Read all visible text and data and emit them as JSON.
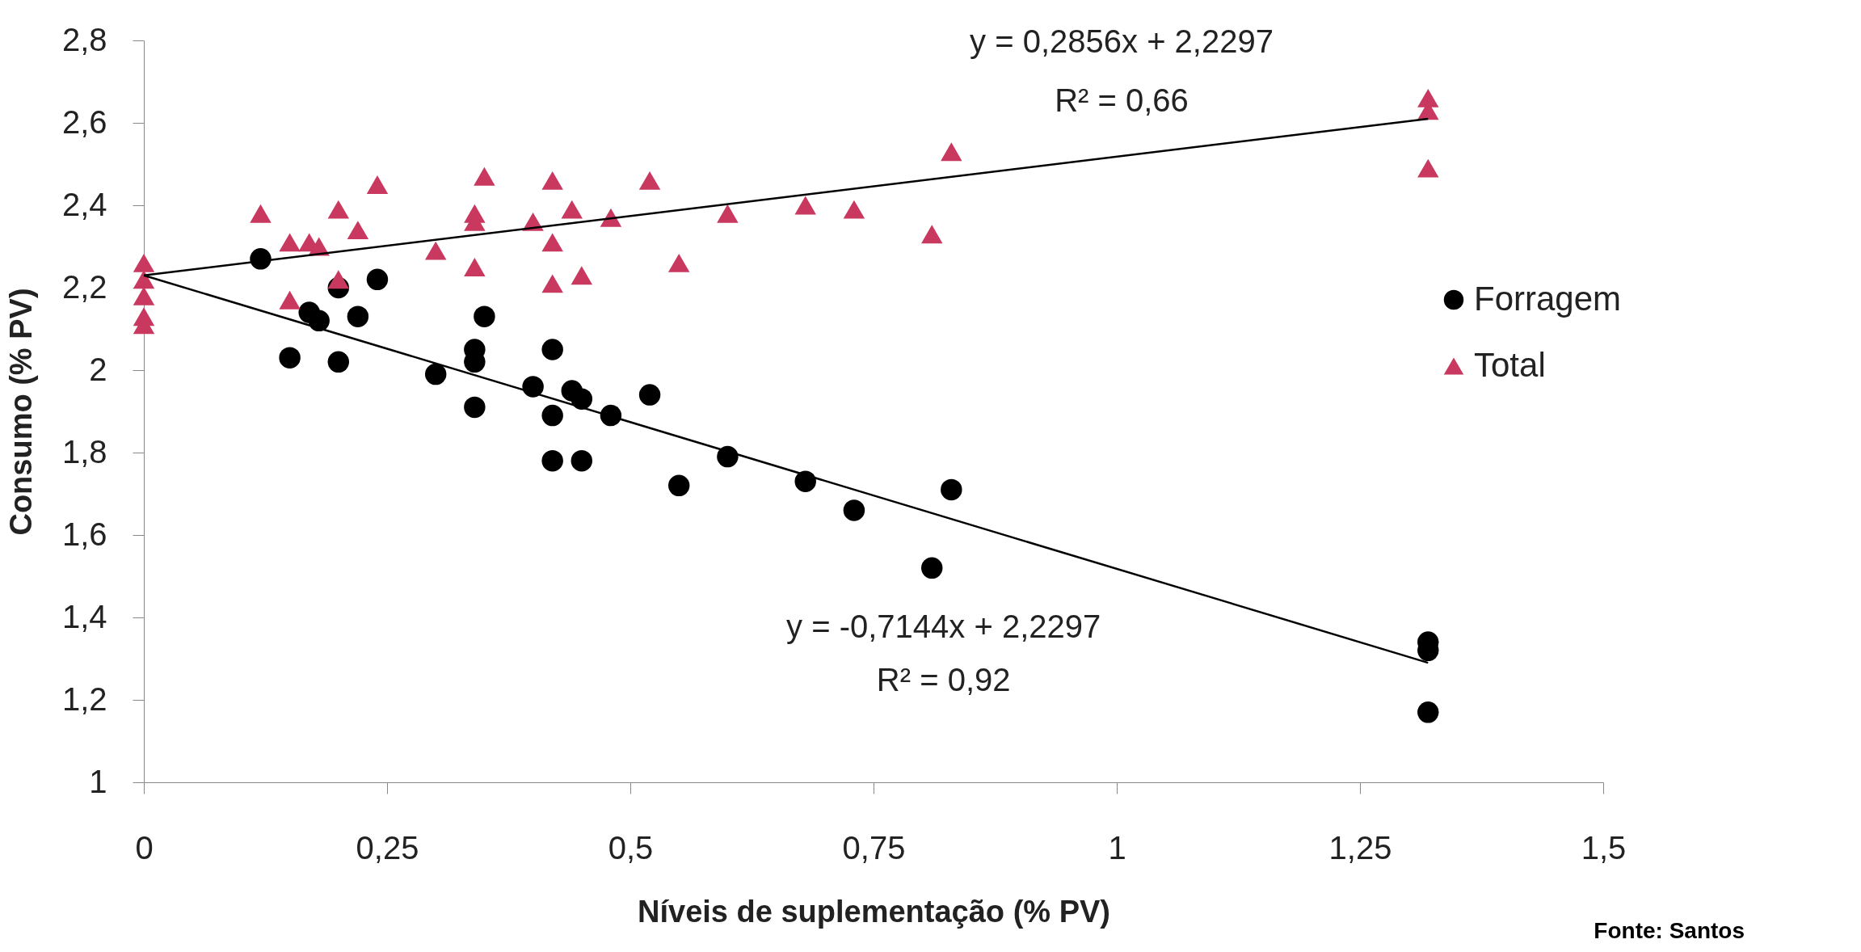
{
  "chart_data": {
    "type": "scatter",
    "xlabel": "Níveis de suplementação (% PV)",
    "ylabel": "Consumo (% PV)",
    "xlim": [
      0,
      1.5
    ],
    "xticks": [
      0,
      {
        "value": 0.25,
        "label": "0,25"
      },
      {
        "value": 0.5,
        "label": "0,5"
      },
      {
        "value": 0.75,
        "label": "0,75"
      },
      1,
      {
        "value": 1.25,
        "label": "1,25"
      },
      {
        "value": 1.5,
        "label": "1,5"
      }
    ],
    "ylim": [
      1,
      2.8
    ],
    "yticks": [
      1,
      {
        "value": 1.2,
        "label": "1,2"
      },
      {
        "value": 1.4,
        "label": "1,4"
      },
      {
        "value": 1.6,
        "label": "1,6"
      },
      {
        "value": 1.8,
        "label": "1,8"
      },
      2,
      {
        "value": 2.2,
        "label": "2,2"
      },
      {
        "value": 2.4,
        "label": "2,4"
      },
      {
        "value": 2.6,
        "label": "2,6"
      },
      {
        "value": 2.8,
        "label": "2,8"
      }
    ],
    "grid": false,
    "legend": "right",
    "series": [
      {
        "name": "Forragem",
        "color": "#000000",
        "marker": "circle",
        "x": [
          0.12,
          0.15,
          0.17,
          0.18,
          0.2,
          0.2,
          0.22,
          0.24,
          0.3,
          0.35,
          0.34,
          0.34,
          0.34,
          0.42,
          0.4,
          0.44,
          0.45,
          0.42,
          0.48,
          0.52,
          0.42,
          0.45,
          0.55,
          0.6,
          0.68,
          0.73,
          0.81,
          0.83,
          1.32,
          1.32,
          1.32
        ],
        "values": [
          2.27,
          2.03,
          2.14,
          2.12,
          2.02,
          2.2,
          2.13,
          2.22,
          1.99,
          2.13,
          2.05,
          2.02,
          1.91,
          2.05,
          1.96,
          1.95,
          1.93,
          1.89,
          1.89,
          1.94,
          1.78,
          1.78,
          1.72,
          1.79,
          1.73,
          1.66,
          1.52,
          1.71,
          1.34,
          1.32,
          1.17
        ]
      },
      {
        "name": "Total",
        "color": "#c8385f",
        "marker": "triangle",
        "x": [
          0,
          0,
          0,
          0,
          0,
          0.12,
          0.15,
          0.17,
          0.18,
          0.15,
          0.2,
          0.2,
          0.22,
          0.24,
          0.3,
          0.34,
          0.34,
          0.34,
          0.35,
          0.4,
          0.42,
          0.42,
          0.42,
          0.44,
          0.45,
          0.48,
          0.52,
          0.55,
          0.6,
          0.68,
          0.73,
          0.81,
          0.83,
          1.32,
          1.32,
          1.32
        ],
        "values": [
          2.26,
          2.22,
          2.18,
          2.13,
          2.11,
          2.38,
          2.31,
          2.31,
          2.3,
          2.17,
          2.39,
          2.22,
          2.34,
          2.45,
          2.29,
          2.38,
          2.36,
          2.25,
          2.47,
          2.36,
          2.31,
          2.21,
          2.46,
          2.39,
          2.23,
          2.37,
          2.46,
          2.26,
          2.38,
          2.4,
          2.39,
          2.33,
          2.53,
          2.66,
          2.63,
          2.49
        ]
      },
      {
        "type": "line",
        "color": "#000000",
        "marker": "none",
        "x": [
          0,
          1.32
        ],
        "values": [
          2.23,
          2.61
        ]
      },
      {
        "type": "line",
        "color": "#000000",
        "marker": "none",
        "x": [
          0,
          1.32
        ],
        "values": [
          2.23,
          1.29
        ]
      }
    ],
    "annotations": [
      "y = 0,2856x + 2,2297",
      "R² = 0,66",
      "y = -0,7144x + 2,2297",
      "R² = 0,92",
      "Fonte: Santos"
    ]
  }
}
